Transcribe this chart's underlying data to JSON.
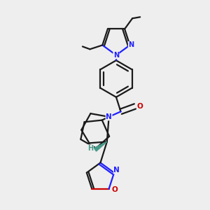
{
  "background_color": "#eeeeee",
  "bond_color": "#1a1a1a",
  "nitrogen_color": "#2020ff",
  "oxygen_color": "#cc0000",
  "stereo_color": "#4a9a8a",
  "line_width": 1.6,
  "figsize": [
    3.0,
    3.0
  ],
  "dpi": 100,
  "xlim": [
    -0.5,
    1.8
  ],
  "ylim": [
    -1.7,
    1.5
  ]
}
